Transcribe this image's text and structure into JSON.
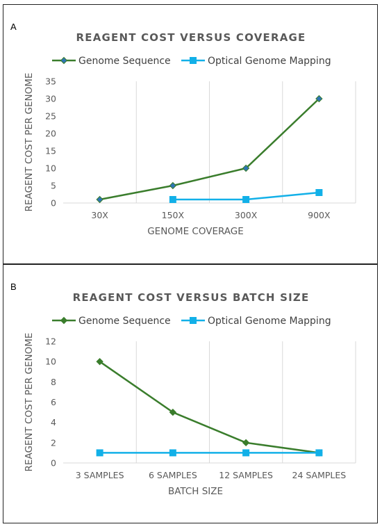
{
  "chart_data": [
    {
      "panel_label": "A",
      "type": "line",
      "title": "REAGENT COST VERSUS COVERAGE",
      "xlabel": "GENOME COVERAGE",
      "ylabel": "REAGENT COST PER GENOME",
      "categories": [
        "30X",
        "150X",
        "300X",
        "900X"
      ],
      "ylim": [
        0,
        35
      ],
      "yticks": [
        0,
        5,
        10,
        15,
        20,
        25,
        30,
        35
      ],
      "grid": "vertical",
      "legend_position": "top",
      "series": [
        {
          "name": "Genome Sequence",
          "color": "#3a7d2c",
          "marker_color": "#2e75b6",
          "marker": "diamond",
          "values": [
            1,
            5,
            10,
            30
          ]
        },
        {
          "name": "Optical Genome Mapping",
          "color": "#12b0e8",
          "marker_color": "#12b0e8",
          "marker": "square",
          "values": [
            null,
            1,
            1,
            3
          ]
        }
      ]
    },
    {
      "panel_label": "B",
      "type": "line",
      "title": "REAGENT COST VERSUS BATCH SIZE",
      "xlabel": "BATCH SIZE",
      "ylabel": "REAGENT COST PER GENOME",
      "categories": [
        "3 SAMPLES",
        "6 SAMPLES",
        "12 SAMPLES",
        "24 SAMPLES"
      ],
      "ylim": [
        0,
        12
      ],
      "yticks": [
        0,
        2,
        4,
        6,
        8,
        10,
        12
      ],
      "grid": "vertical",
      "legend_position": "top",
      "series": [
        {
          "name": "Genome Sequence",
          "color": "#3a7d2c",
          "marker_color": "#3a7d2c",
          "marker": "diamond",
          "values": [
            10,
            5,
            2,
            1
          ]
        },
        {
          "name": "Optical Genome Mapping",
          "color": "#12b0e8",
          "marker_color": "#12b0e8",
          "marker": "square",
          "values": [
            1,
            1,
            1,
            1
          ]
        }
      ]
    }
  ]
}
